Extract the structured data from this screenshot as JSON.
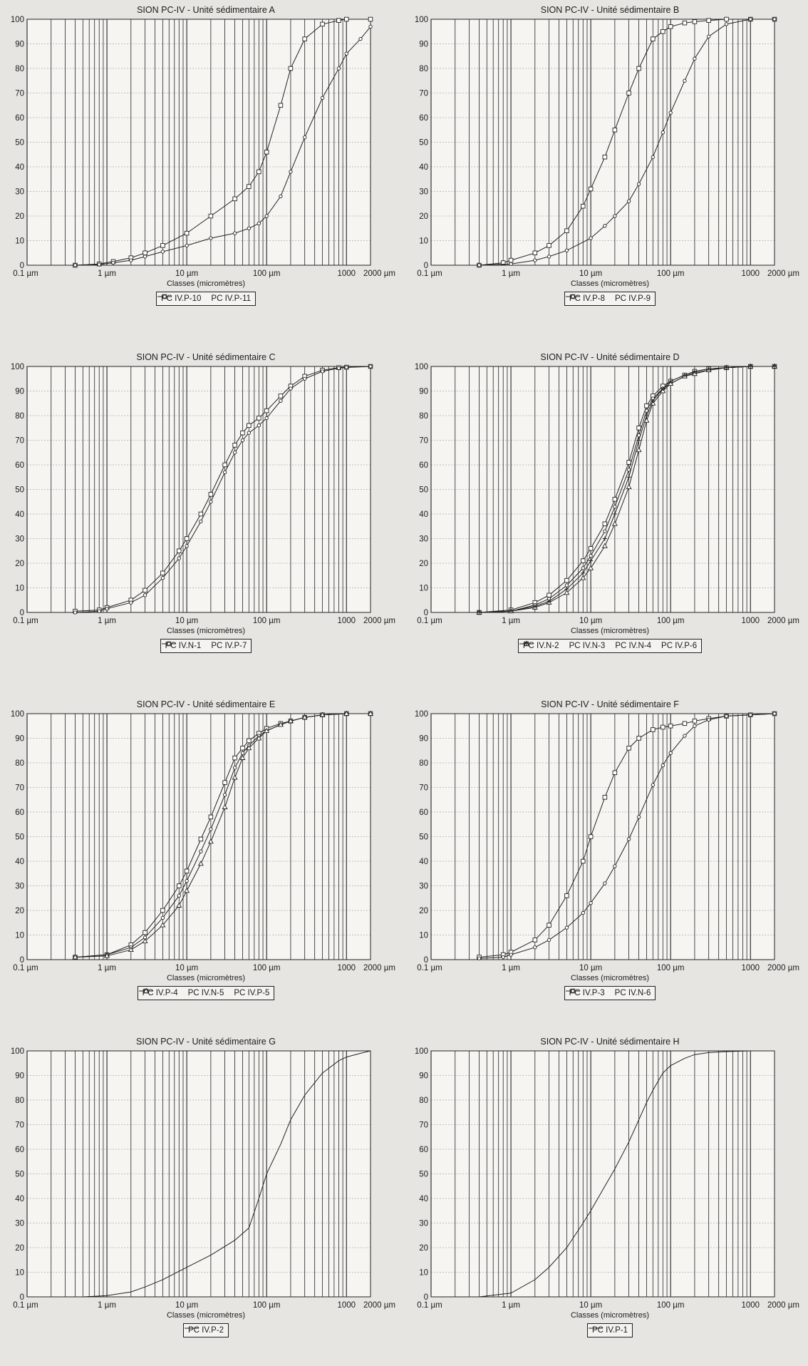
{
  "axis_common": {
    "tick_labels": [
      "0.1 µm",
      "1 µm",
      "10 µm",
      "100 µm",
      "1000",
      "2000 µm"
    ],
    "y_ticks": [
      "0",
      "10",
      "20",
      "30",
      "40",
      "50",
      "60",
      "70",
      "80",
      "90",
      "100"
    ],
    "xlabel": "Classes (micromètres)"
  },
  "chart_data": [
    {
      "id": "A",
      "type": "line",
      "title": "SION PC-IV - Unité sédimentaire A",
      "xlabel": "Classes (micromètres)",
      "xscale": "log",
      "xlim": [
        0.1,
        2000
      ],
      "ylim": [
        0,
        100
      ],
      "grid": true,
      "legend_position": "bottom",
      "series": [
        {
          "name": "PC IV.P-10",
          "marker": "square",
          "x": [
            0.4,
            0.8,
            1.2,
            2,
            3,
            5,
            10,
            20,
            40,
            60,
            80,
            100,
            150,
            200,
            300,
            500,
            800,
            1000,
            2000
          ],
          "y": [
            0,
            0.5,
            1.5,
            3,
            5,
            8,
            13,
            20,
            27,
            32,
            38,
            46,
            65,
            80,
            92,
            98,
            99.5,
            100,
            100
          ]
        },
        {
          "name": "PC IV.P-11",
          "marker": "circle",
          "x": [
            0.4,
            0.8,
            1.2,
            2,
            3,
            5,
            10,
            20,
            40,
            60,
            80,
            100,
            150,
            200,
            300,
            500,
            800,
            1000,
            1500,
            2000
          ],
          "y": [
            0,
            0.3,
            1,
            2,
            3.5,
            5.5,
            8,
            11,
            13,
            15,
            17,
            20,
            28,
            38,
            52,
            68,
            80,
            86,
            92,
            97
          ]
        }
      ]
    },
    {
      "id": "B",
      "type": "line",
      "title": "SION PC-IV - Unité sédimentaire B",
      "xlabel": "Classes (micromètres)",
      "xscale": "log",
      "xlim": [
        0.1,
        2000
      ],
      "ylim": [
        0,
        100
      ],
      "grid": true,
      "legend_position": "bottom",
      "series": [
        {
          "name": "PC IV.P-8",
          "marker": "square",
          "x": [
            0.4,
            0.8,
            1,
            2,
            3,
            5,
            8,
            10,
            15,
            20,
            30,
            40,
            60,
            80,
            100,
            150,
            200,
            300,
            500,
            1000,
            2000
          ],
          "y": [
            0,
            1,
            2,
            5,
            8,
            14,
            24,
            31,
            44,
            55,
            70,
            80,
            92,
            95,
            97,
            98.5,
            99,
            99.5,
            100,
            100,
            100
          ]
        },
        {
          "name": "PC IV.P-9",
          "marker": "circle",
          "x": [
            0.4,
            1,
            2,
            3,
            5,
            10,
            15,
            20,
            30,
            40,
            60,
            80,
            100,
            150,
            200,
            300,
            500,
            1000,
            2000
          ],
          "y": [
            0,
            0.5,
            2,
            3.5,
            6,
            11,
            16,
            20,
            26,
            33,
            44,
            54,
            62,
            75,
            84,
            93,
            98,
            100,
            100
          ]
        }
      ]
    },
    {
      "id": "C",
      "type": "line",
      "title": "SION PC-IV - Unité sédimentaire  C",
      "xlabel": "Classes (micromètres)",
      "xscale": "log",
      "xlim": [
        0.1,
        2000
      ],
      "ylim": [
        0,
        100
      ],
      "grid": true,
      "legend_position": "bottom",
      "series": [
        {
          "name": "PC IV.N-1",
          "marker": "square",
          "x": [
            0.4,
            0.8,
            1,
            2,
            3,
            5,
            8,
            10,
            15,
            20,
            30,
            40,
            50,
            60,
            80,
            100,
            150,
            200,
            300,
            500,
            800,
            1000,
            2000
          ],
          "y": [
            0.5,
            1,
            2,
            5,
            9,
            16,
            25,
            30,
            40,
            48,
            60,
            68,
            73,
            76,
            79,
            82,
            88,
            92,
            96,
            98.5,
            99.5,
            99.7,
            100
          ]
        },
        {
          "name": "PC IV.P-7",
          "marker": "circle",
          "x": [
            0.4,
            0.8,
            1,
            2,
            3,
            5,
            8,
            10,
            15,
            20,
            30,
            40,
            50,
            60,
            80,
            100,
            150,
            200,
            300,
            500,
            800,
            1000,
            2000
          ],
          "y": [
            0,
            0.5,
            1.5,
            4,
            7,
            14,
            22,
            27,
            37,
            45,
            57,
            65,
            70,
            73,
            76,
            79,
            86,
            91,
            95,
            98,
            99.3,
            99.6,
            100
          ]
        }
      ]
    },
    {
      "id": "D",
      "type": "line",
      "title": "SION PC-IV - Unité sédimentaire D",
      "xlabel": "Classes (micromètres)",
      "xscale": "log",
      "xlim": [
        0.1,
        2000
      ],
      "ylim": [
        0,
        100
      ],
      "grid": true,
      "legend_position": "bottom",
      "series": [
        {
          "name": "PC IV.N-2",
          "marker": "square",
          "x": [
            0.4,
            1,
            2,
            3,
            5,
            8,
            10,
            15,
            20,
            30,
            40,
            50,
            60,
            80,
            100,
            150,
            200,
            300,
            500,
            1000,
            2000
          ],
          "y": [
            0,
            1,
            4,
            7,
            13,
            21,
            26,
            36,
            46,
            61,
            75,
            84,
            88,
            92,
            94,
            96.5,
            98,
            99,
            99.5,
            100,
            100
          ]
        },
        {
          "name": "PC IV.N-3",
          "marker": "circle",
          "x": [
            0.4,
            1,
            2,
            3,
            5,
            8,
            10,
            15,
            20,
            30,
            40,
            50,
            60,
            80,
            100,
            150,
            200,
            300,
            500,
            1000,
            2000
          ],
          "y": [
            0,
            0.5,
            3,
            5.5,
            11,
            18,
            23,
            33,
            43,
            58,
            72,
            82,
            87,
            91,
            93,
            96,
            97.5,
            98.5,
            99.5,
            100,
            100
          ]
        },
        {
          "name": "PC IV.N-4",
          "marker": "triangle",
          "x": [
            0.4,
            1,
            2,
            3,
            5,
            8,
            10,
            15,
            20,
            30,
            40,
            50,
            60,
            80,
            100,
            150,
            200,
            300,
            500,
            1000,
            2000
          ],
          "y": [
            0,
            0.5,
            2,
            4,
            8,
            14,
            18,
            27,
            36,
            51,
            66,
            78,
            85,
            90,
            93,
            96,
            97,
            98.5,
            99.5,
            100,
            100
          ]
        },
        {
          "name": "PC IV.P-6",
          "marker": "cross",
          "x": [
            0.4,
            1,
            2,
            3,
            5,
            8,
            10,
            15,
            20,
            30,
            40,
            50,
            60,
            80,
            100,
            150,
            200,
            300,
            500,
            1000,
            2000
          ],
          "y": [
            0,
            0.5,
            2.5,
            4.5,
            9.5,
            16,
            21,
            30,
            40,
            55,
            70,
            80,
            86,
            91,
            94,
            96.5,
            98,
            99,
            99.5,
            100,
            100
          ]
        }
      ]
    },
    {
      "id": "E",
      "type": "line",
      "title": "SION PC-IV - Unité sédimentaire E",
      "xlabel": "Classes (micromètres)",
      "xscale": "log",
      "xlim": [
        0.1,
        2000
      ],
      "ylim": [
        0,
        100
      ],
      "grid": true,
      "legend_position": "bottom",
      "series": [
        {
          "name": "PC IV.P-4",
          "marker": "square",
          "x": [
            0.4,
            1,
            2,
            3,
            5,
            8,
            10,
            15,
            20,
            30,
            40,
            50,
            60,
            80,
            100,
            150,
            200,
            300,
            500,
            1000,
            2000
          ],
          "y": [
            1,
            2,
            6,
            11,
            20,
            30,
            36,
            49,
            58,
            72,
            82,
            86,
            89,
            92,
            94,
            96,
            97,
            98.5,
            99.5,
            100,
            100
          ]
        },
        {
          "name": "PC IV.N-5",
          "marker": "circle",
          "x": [
            0.4,
            1,
            2,
            3,
            5,
            8,
            10,
            15,
            20,
            30,
            40,
            50,
            60,
            80,
            100,
            150,
            200,
            300,
            500,
            1000,
            2000
          ],
          "y": [
            1,
            2,
            5,
            9,
            17,
            26,
            32,
            44,
            53,
            67,
            78,
            84,
            87,
            91,
            93,
            95.5,
            97,
            98.5,
            99.5,
            100,
            100
          ]
        },
        {
          "name": "PC IV.P-5",
          "marker": "triangle",
          "x": [
            0.4,
            1,
            2,
            3,
            5,
            8,
            10,
            15,
            20,
            30,
            40,
            50,
            60,
            80,
            100,
            150,
            200,
            300,
            500,
            1000,
            2000
          ],
          "y": [
            1,
            1.5,
            4,
            7.5,
            14,
            22,
            28,
            39,
            48,
            62,
            74,
            82,
            86,
            90,
            93,
            95.5,
            97,
            98.5,
            99.5,
            100,
            100
          ]
        }
      ]
    },
    {
      "id": "F",
      "type": "line",
      "title": "SION PC-IV - Unité sédimentaire F",
      "xlabel": "Classes (micromètres)",
      "xscale": "log",
      "xlim": [
        0.1,
        2000
      ],
      "ylim": [
        0,
        100
      ],
      "grid": true,
      "legend_position": "bottom",
      "series": [
        {
          "name": "PC IV.P-3",
          "marker": "square",
          "x": [
            0.4,
            0.8,
            1,
            2,
            3,
            5,
            8,
            10,
            15,
            20,
            30,
            40,
            60,
            80,
            100,
            150,
            200,
            300,
            500,
            1000,
            2000
          ],
          "y": [
            1,
            2,
            3,
            8,
            14,
            26,
            40,
            50,
            66,
            76,
            86,
            90,
            93.5,
            94.5,
            95,
            96,
            97,
            98,
            99,
            99.5,
            100
          ]
        },
        {
          "name": "PC IV.N-6",
          "marker": "circle",
          "x": [
            0.4,
            0.8,
            1,
            2,
            3,
            5,
            8,
            10,
            15,
            20,
            30,
            40,
            60,
            80,
            100,
            150,
            200,
            300,
            500,
            1000,
            2000
          ],
          "y": [
            0.5,
            1,
            2,
            5,
            8,
            13,
            19,
            23,
            31,
            38,
            49,
            58,
            71,
            79,
            84,
            91,
            95,
            97.5,
            99,
            99.5,
            100
          ]
        }
      ]
    },
    {
      "id": "G",
      "type": "line",
      "title": "SION PC-IV - Unité sédimentaire G",
      "xlabel": "Classes (micromètres)",
      "xscale": "log",
      "xlim": [
        0.1,
        2000
      ],
      "ylim": [
        0,
        100
      ],
      "grid": true,
      "legend_position": "bottom",
      "series": [
        {
          "name": "PC IV.P-2",
          "marker": "none",
          "x": [
            0.5,
            1,
            2,
            3,
            5,
            10,
            20,
            40,
            60,
            80,
            100,
            150,
            200,
            300,
            500,
            800,
            1000,
            1500,
            2000
          ],
          "y": [
            0,
            0.5,
            2,
            4,
            7,
            12,
            17,
            23,
            28,
            40,
            50,
            62,
            72,
            82,
            91,
            96,
            97.5,
            99,
            100
          ]
        }
      ]
    },
    {
      "id": "H",
      "type": "line",
      "title": "SION PC-IV - Unité sédimentaire H",
      "xlabel": "Classes (micromètres)",
      "xscale": "log",
      "xlim": [
        0.1,
        2000
      ],
      "ylim": [
        0,
        100
      ],
      "grid": true,
      "legend_position": "bottom",
      "series": [
        {
          "name": "PC IV.P-1",
          "marker": "none",
          "x": [
            0.4,
            1,
            2,
            3,
            5,
            8,
            10,
            15,
            20,
            30,
            40,
            50,
            60,
            80,
            100,
            150,
            200,
            300,
            500,
            1000,
            2000
          ],
          "y": [
            0,
            1.5,
            7,
            12,
            20,
            30,
            35,
            45,
            52,
            63,
            72,
            79,
            84,
            91,
            94,
            97,
            98.5,
            99.3,
            99.7,
            100,
            100
          ]
        }
      ]
    }
  ]
}
